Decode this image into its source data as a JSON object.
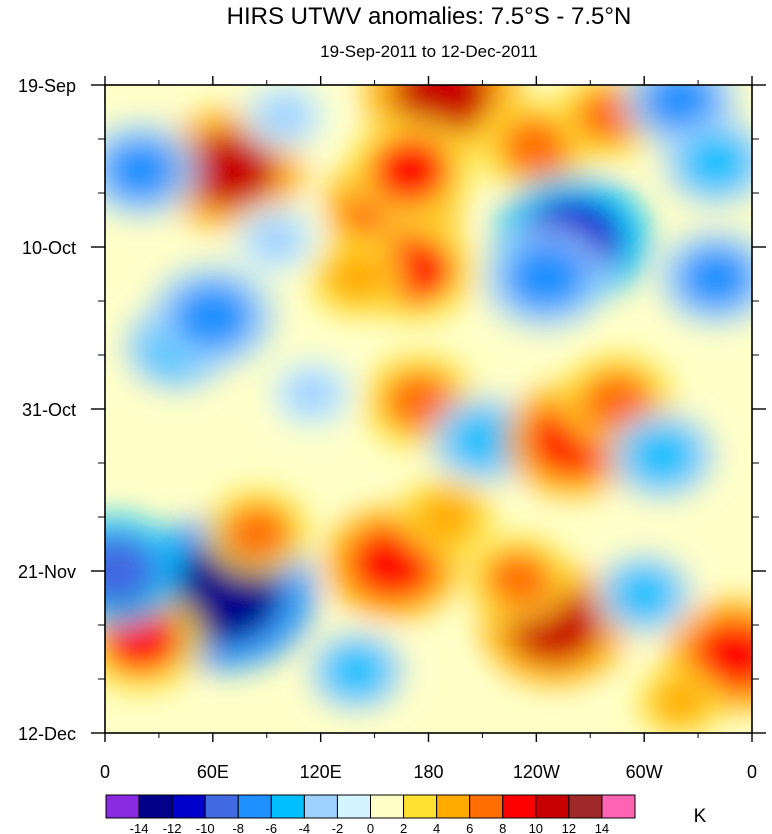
{
  "chart_data": {
    "type": "heatmap",
    "title": "HIRS UTWV anomalies: 7.5°S - 7.5°N",
    "subtitle": "19-Sep-2011 to 12-Dec-2011",
    "xlabel": "",
    "ylabel": "",
    "x_ticks": [
      "0",
      "60E",
      "120E",
      "180",
      "120W",
      "60W",
      "0"
    ],
    "x_tick_values": [
      0,
      60,
      120,
      180,
      240,
      300,
      360
    ],
    "y_ticks": [
      "19-Sep",
      "10-Oct",
      "31-Oct",
      "21-Nov",
      "12-Dec"
    ],
    "y_tick_days": [
      0,
      21,
      42,
      63,
      84
    ],
    "xlim": [
      0,
      360
    ],
    "ylim_days": [
      0,
      84
    ],
    "colorbar": {
      "unit": "K",
      "levels": [
        -14,
        -12,
        -10,
        -8,
        -6,
        -4,
        -2,
        0,
        2,
        4,
        6,
        8,
        10,
        12,
        14
      ],
      "colors": [
        "#8a2be2",
        "#00008b",
        "#0000cd",
        "#4169e1",
        "#1e90ff",
        "#00bfff",
        "#a0d2ff",
        "#d2f5ff",
        "#ffffc8",
        "#ffe132",
        "#ffaa00",
        "#ff6e00",
        "#ff0000",
        "#c80000",
        "#a02828",
        "#ff64b4"
      ]
    },
    "features": [
      {
        "lon": 70,
        "day": 11,
        "value": 10
      },
      {
        "lon": 188,
        "day": 1,
        "value": 11
      },
      {
        "lon": 160,
        "day": 16,
        "value": 9
      },
      {
        "lon": 170,
        "day": 11,
        "value": 8
      },
      {
        "lon": 172,
        "day": 24,
        "value": 8
      },
      {
        "lon": 140,
        "day": 25,
        "value": 5
      },
      {
        "lon": 240,
        "day": 8,
        "value": 7
      },
      {
        "lon": 260,
        "day": 20,
        "value": -11
      },
      {
        "lon": 245,
        "day": 25,
        "value": -8
      },
      {
        "lon": 280,
        "day": 4,
        "value": 6
      },
      {
        "lon": 320,
        "day": 2,
        "value": -7
      },
      {
        "lon": 340,
        "day": 25,
        "value": -7
      },
      {
        "lon": 20,
        "day": 11,
        "value": -7
      },
      {
        "lon": 40,
        "day": 34,
        "value": -6
      },
      {
        "lon": 60,
        "day": 30,
        "value": -8
      },
      {
        "lon": 95,
        "day": 20,
        "value": -4
      },
      {
        "lon": 175,
        "day": 41,
        "value": 7
      },
      {
        "lon": 210,
        "day": 46,
        "value": -6
      },
      {
        "lon": 260,
        "day": 46,
        "value": 9
      },
      {
        "lon": 285,
        "day": 41,
        "value": 7
      },
      {
        "lon": 310,
        "day": 48,
        "value": -6
      },
      {
        "lon": 65,
        "day": 66,
        "value": -14
      },
      {
        "lon": 85,
        "day": 58,
        "value": 6
      },
      {
        "lon": 160,
        "day": 62,
        "value": 9
      },
      {
        "lon": 190,
        "day": 56,
        "value": 5
      },
      {
        "lon": 250,
        "day": 70,
        "value": 10
      },
      {
        "lon": 230,
        "day": 64,
        "value": 6
      },
      {
        "lon": 20,
        "day": 72,
        "value": 8
      },
      {
        "lon": 350,
        "day": 74,
        "value": 9
      },
      {
        "lon": 140,
        "day": 76,
        "value": -5
      },
      {
        "lon": 300,
        "day": 66,
        "value": -5
      },
      {
        "lon": 115,
        "day": 40,
        "value": -4
      },
      {
        "lon": 5,
        "day": 63,
        "value": -9
      },
      {
        "lon": 320,
        "day": 80,
        "value": 4
      },
      {
        "lon": 100,
        "day": 4,
        "value": -4
      },
      {
        "lon": 340,
        "day": 10,
        "value": -6
      }
    ]
  }
}
